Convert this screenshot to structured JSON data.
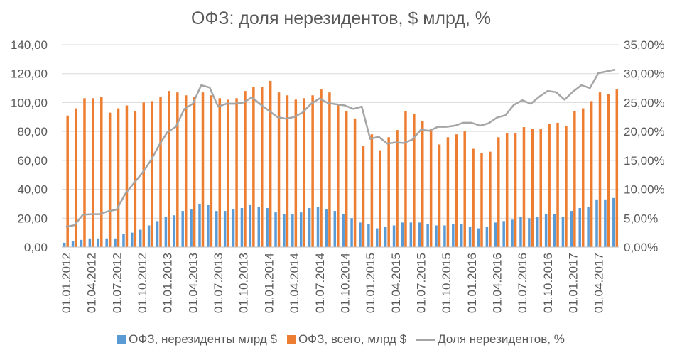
{
  "chart_data": {
    "type": "bar",
    "title": "ОФЗ: доля нерезидентов, $ млрд, %",
    "categories": [
      "01.01.2012",
      "01.02.2012",
      "01.03.2012",
      "01.04.2012",
      "01.05.2012",
      "01.06.2012",
      "01.07.2012",
      "01.08.2012",
      "01.09.2012",
      "01.10.2012",
      "01.11.2012",
      "01.12.2012",
      "01.01.2013",
      "01.02.2013",
      "01.03.2013",
      "01.04.2013",
      "01.05.2013",
      "01.06.2013",
      "01.07.2013",
      "01.08.2013",
      "01.09.2013",
      "01.10.2013",
      "01.11.2013",
      "01.12.2013",
      "01.01.2014",
      "01.02.2014",
      "01.03.2014",
      "01.04.2014",
      "01.05.2014",
      "01.06.2014",
      "01.07.2014",
      "01.08.2014",
      "01.09.2014",
      "01.10.2014",
      "01.11.2014",
      "01.12.2014",
      "01.01.2015",
      "01.02.2015",
      "01.03.2015",
      "01.04.2015",
      "01.05.2015",
      "01.06.2015",
      "01.07.2015",
      "01.08.2015",
      "01.09.2015",
      "01.10.2015",
      "01.11.2015",
      "01.12.2015",
      "01.01.2016",
      "01.02.2016",
      "01.03.2016",
      "01.04.2016",
      "01.05.2016",
      "01.06.2016",
      "01.07.2016",
      "01.08.2016",
      "01.09.2016",
      "01.10.2016",
      "01.11.2016",
      "01.12.2016",
      "01.01.2017",
      "01.02.2017",
      "01.03.2017",
      "01.04.2017",
      "01.05.2017",
      "01.06.2017"
    ],
    "x_tick_labels": [
      "01.01.2012",
      "01.04.2012",
      "01.07.2012",
      "01.10.2012",
      "01.01.2013",
      "01.04.2013",
      "01.07.2013",
      "01.10.2013",
      "01.01.2014",
      "01.04.2014",
      "01.07.2014",
      "01.10.2014",
      "01.01.2015",
      "01.04.2015",
      "01.07.2015",
      "01.10.2015",
      "01.01.2016",
      "01.04.2016",
      "01.07.2016",
      "01.10.2016",
      "01.01.2017",
      "01.04.2017"
    ],
    "series": [
      {
        "name": "ОФЗ, нерезиденты млрд $",
        "axis": "left",
        "type": "bar",
        "color": "#5B9BD5",
        "values": [
          3,
          4,
          5,
          6,
          6,
          6,
          6,
          9,
          10,
          12,
          15,
          18,
          21,
          22,
          25,
          26,
          30,
          29,
          25,
          25,
          26,
          27,
          29,
          28,
          27,
          24,
          23,
          23,
          24,
          27,
          28,
          26,
          25,
          23,
          20,
          17,
          16,
          13,
          14,
          15,
          17,
          17,
          17,
          16,
          15,
          15,
          16,
          16,
          14,
          13,
          14,
          17,
          18,
          19,
          21,
          20,
          21,
          23,
          23,
          21,
          25,
          27,
          28,
          33,
          33,
          34
        ]
      },
      {
        "name": "ОФЗ, всего, млрд $",
        "axis": "left",
        "type": "bar",
        "color": "#ED7D31",
        "values": [
          91,
          96,
          103,
          103,
          104,
          93,
          96,
          98,
          94,
          100,
          101,
          104,
          108,
          107,
          105,
          104,
          107,
          105,
          103,
          102,
          103,
          108,
          111,
          111,
          115,
          107,
          105,
          102,
          103,
          105,
          109,
          107,
          99,
          94,
          89,
          70,
          78,
          67,
          76,
          81,
          94,
          92,
          87,
          82,
          71,
          76,
          78,
          80,
          68,
          65,
          66,
          76,
          79,
          79,
          83,
          82,
          82,
          85,
          86,
          84,
          94,
          96,
          101,
          107,
          106,
          109
        ]
      },
      {
        "name": "Доля нерезидентов, %",
        "axis": "right",
        "type": "line",
        "color": "#A5A5A5",
        "values": [
          3.5,
          3.8,
          5.6,
          5.7,
          5.7,
          6.2,
          6.5,
          9.2,
          11.0,
          12.8,
          14.9,
          17.6,
          19.9,
          20.8,
          23.9,
          24.8,
          28.0,
          27.6,
          24.3,
          24.8,
          24.8,
          25.0,
          25.9,
          24.7,
          23.6,
          22.5,
          22.2,
          22.5,
          23.3,
          24.8,
          25.7,
          24.9,
          24.7,
          24.5,
          23.9,
          24.3,
          18.7,
          19.1,
          17.9,
          18.1,
          18.0,
          18.6,
          20.3,
          20.1,
          20.8,
          20.8,
          21.0,
          21.5,
          21.5,
          21.0,
          21.4,
          22.4,
          22.8,
          24.6,
          25.4,
          24.8,
          26.0,
          27.0,
          26.8,
          25.5,
          26.9,
          28.0,
          27.5,
          30.1,
          30.4,
          30.7
        ]
      }
    ],
    "y_left": {
      "min": 0,
      "max": 140,
      "ticks": [
        "0,00",
        "20,00",
        "40,00",
        "60,00",
        "80,00",
        "100,00",
        "120,00",
        "140,00"
      ]
    },
    "y_right": {
      "min": 0,
      "max": 35,
      "ticks": [
        "0,00%",
        "5,00%",
        "10,00%",
        "15,00%",
        "20,00%",
        "25,00%",
        "30,00%",
        "35,00%"
      ]
    },
    "grid": true,
    "legend": "bottom"
  }
}
